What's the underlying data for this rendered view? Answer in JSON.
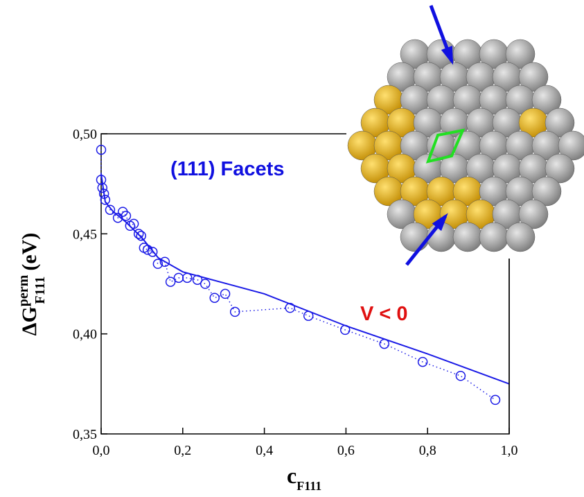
{
  "chart_data": {
    "type": "scatter",
    "x_label": "c",
    "x_label_sub": "F111",
    "y_label": "ΔG",
    "y_label_sup": "perm",
    "y_label_sub": "F111",
    "y_label_unit": "(eV)",
    "annotations": [
      {
        "text": "(111) Facets",
        "color": "#1010e0"
      },
      {
        "text": "V < 0",
        "color": "#e01010"
      }
    ],
    "xlim": [
      0,
      1.0
    ],
    "ylim": [
      0.35,
      0.5
    ],
    "xticks": [
      {
        "value": 0,
        "label": "0,0"
      },
      {
        "value": 0.2,
        "label": "0,2"
      },
      {
        "value": 0.4,
        "label": "0,4"
      },
      {
        "value": 0.6,
        "label": "0,6"
      },
      {
        "value": 0.8,
        "label": "0,8"
      },
      {
        "value": 1.0,
        "label": "1,0"
      }
    ],
    "yticks": [
      {
        "value": 0.35,
        "label": "0,35"
      },
      {
        "value": 0.4,
        "label": "0,40"
      },
      {
        "value": 0.45,
        "label": "0,45"
      },
      {
        "value": 0.5,
        "label": "0,50"
      }
    ],
    "series": [
      {
        "kind": "points",
        "color": "#1a1ae6",
        "x": [
          0,
          0.0,
          0.003,
          0.007,
          0.01,
          0.022,
          0.041,
          0.053,
          0.061,
          0.071,
          0.08,
          0.092,
          0.098,
          0.105,
          0.114,
          0.126,
          0.139,
          0.156,
          0.17,
          0.19,
          0.211,
          0.236,
          0.255,
          0.278,
          0.304,
          0.328,
          0.463,
          0.508,
          0.598,
          0.694,
          0.788,
          0.881,
          0.966
        ],
        "values": [
          0.492,
          0.477,
          0.473,
          0.47,
          0.467,
          0.462,
          0.458,
          0.461,
          0.459,
          0.454,
          0.455,
          0.45,
          0.449,
          0.443,
          0.442,
          0.441,
          0.435,
          0.436,
          0.426,
          0.428,
          0.428,
          0.427,
          0.425,
          0.418,
          0.42,
          0.411,
          0.413,
          0.409,
          0.402,
          0.395,
          0.386,
          0.379,
          0.367
        ]
      },
      {
        "kind": "fit",
        "color": "#1a1ae6",
        "x": [
          0,
          0.01,
          0.03,
          0.06,
          0.1,
          0.14,
          0.2,
          0.4,
          0.6,
          0.8,
          1.0
        ],
        "values": [
          0.48,
          0.466,
          0.461,
          0.456,
          0.448,
          0.438,
          0.431,
          0.42,
          0.404,
          0.39,
          0.375
        ]
      }
    ]
  }
}
